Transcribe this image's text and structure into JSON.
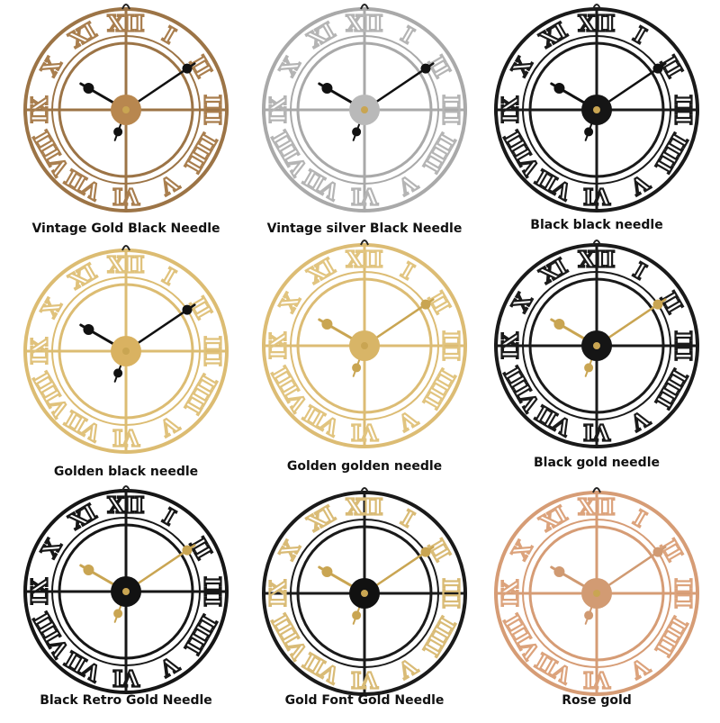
{
  "numerals": [
    "XII",
    "I",
    "II",
    "III",
    "IIII",
    "V",
    "VI",
    "VII",
    "VIII",
    "IX",
    "X",
    "XI"
  ],
  "clocks": [
    {
      "label": "Vintage Gold Black Needle",
      "frame": "#9c7446",
      "numeral": "#a97e4e",
      "hands": "#111111",
      "center": "#b8874f"
    },
    {
      "label": "Vintage silver Black Needle",
      "frame": "#a9a9a9",
      "numeral": "#b4b4b4",
      "hands": "#111111",
      "center": "#b9b9b9"
    },
    {
      "label": "Black black needle",
      "frame": "#1a1a1a",
      "numeral": "#1a1a1a",
      "hands": "#111111",
      "center": "#151515"
    },
    {
      "label": "Golden black needle",
      "frame": "#dcbc72",
      "numeral": "#e0c27c",
      "hands": "#111111",
      "center": "#d9b261"
    },
    {
      "label": "Golden golden needle",
      "frame": "#dcbc74",
      "numeral": "#e1c47f",
      "hands": "#c9a552",
      "center": "#d8b567"
    },
    {
      "label": "Black gold needle",
      "frame": "#1a1a1a",
      "numeral": "#1a1a1a",
      "hands": "#c9a552",
      "center": "#151515"
    },
    {
      "label": "Black Retro Gold Needle",
      "frame": "#161616",
      "numeral": "#161616",
      "hands": "#c9a552",
      "center": "#121212"
    },
    {
      "label": "Gold Font Gold Needle",
      "frame": "#1a1a1a",
      "numeral": "#d9bb76",
      "hands": "#c9a552",
      "center": "#111111"
    },
    {
      "label": "Rose gold",
      "frame": "#d69c75",
      "numeral": "#dca37c",
      "hands": "#d09a72",
      "center": "#d29b73"
    }
  ]
}
